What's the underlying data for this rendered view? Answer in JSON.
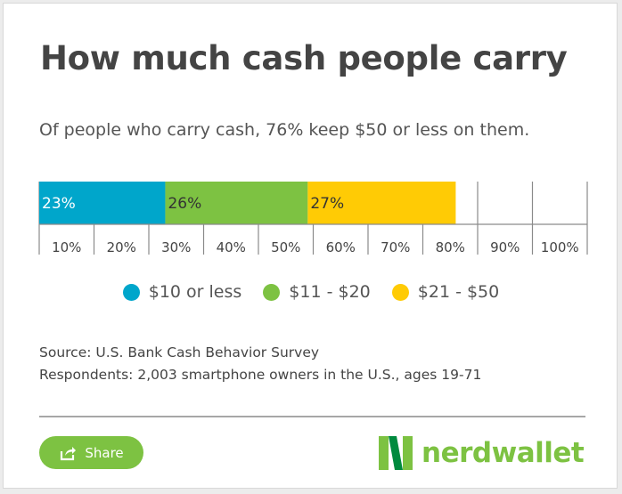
{
  "title": "How much cash people carry",
  "subtitle": "Of people who carry cash, 76% keep $50 or less on them.",
  "chart_data": {
    "type": "bar",
    "orientation": "horizontal-stacked",
    "series": [
      {
        "name": "$10 or less",
        "value": 23,
        "label": "23%",
        "color": "#00a6cb",
        "label_color": "#ffffff"
      },
      {
        "name": "$11 - $20",
        "value": 26,
        "label": "26%",
        "color": "#7dc242",
        "label_color": "#333333"
      },
      {
        "name": "$21 - $50",
        "value": 27,
        "label": "27%",
        "color": "#ffcb05",
        "label_color": "#333333"
      }
    ],
    "xlim": [
      0,
      100
    ],
    "tick_labels": [
      "10%",
      "20%",
      "30%",
      "40%",
      "50%",
      "60%",
      "70%",
      "80%",
      "90%",
      "100%"
    ],
    "grid": true,
    "legend": "bottom"
  },
  "source": {
    "line1": "Source: U.S. Bank Cash Behavior Survey",
    "line2": "Respondents: 2,003 smartphone owners in the U.S., ages 19-71"
  },
  "share": {
    "label": "Share",
    "icon": "share-icon"
  },
  "brand": {
    "name": "nerdwallet",
    "color": "#7dc242",
    "dark_color": "#008a3e"
  }
}
